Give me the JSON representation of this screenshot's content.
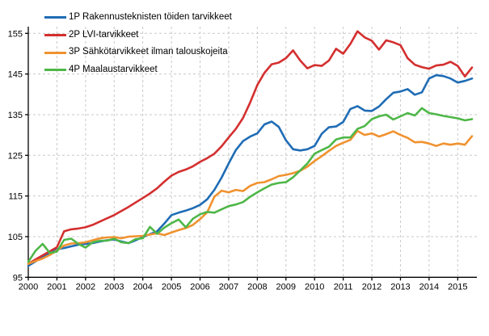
{
  "chart_data": {
    "type": "line",
    "title": "",
    "xlabel": "",
    "ylabel": "",
    "grid": true,
    "legend_position": "top-left",
    "axis_color": "#000000",
    "grid_color": "#c9c9c9",
    "tick_font_px": 11,
    "x_start": 2000,
    "x_step": 0.25,
    "x_ticks": [
      2000,
      2001,
      2002,
      2003,
      2004,
      2005,
      2006,
      2007,
      2008,
      2009,
      2010,
      2011,
      2012,
      2013,
      2014,
      2015
    ],
    "y_ticks": [
      95,
      105,
      115,
      125,
      135,
      145,
      155
    ],
    "ylim": [
      95,
      157.5
    ],
    "xlim": [
      2000,
      2015.67
    ],
    "series": [
      {
        "name": "1P Rakennusteknisten töiden tarvikkeet",
        "color": "#1f6cb5",
        "values": [
          97.8,
          98.9,
          100.1,
          101.0,
          101.9,
          102.2,
          102.6,
          103.0,
          103.2,
          103.4,
          103.8,
          104.1,
          104.3,
          103.8,
          103.4,
          104.1,
          104.9,
          105.6,
          106.3,
          108.2,
          110.3,
          110.9,
          111.4,
          112.0,
          112.8,
          114.2,
          116.5,
          119.5,
          123.0,
          126.3,
          128.5,
          129.6,
          130.4,
          132.6,
          133.3,
          132.0,
          128.7,
          126.5,
          126.2,
          126.5,
          127.3,
          130.3,
          131.9,
          132.1,
          133.2,
          136.4,
          137.1,
          136.0,
          135.9,
          137.0,
          138.8,
          140.4,
          140.7,
          141.3,
          139.9,
          140.5,
          143.9,
          144.7,
          144.5,
          143.9,
          142.9,
          143.3,
          143.9
        ]
      },
      {
        "name": "2P LVI-tarvikkeet",
        "color": "#d42f2f",
        "values": [
          98.3,
          99.4,
          100.4,
          101.4,
          102.4,
          106.3,
          106.8,
          107.0,
          107.3,
          107.9,
          108.7,
          109.5,
          110.3,
          111.3,
          112.3,
          113.4,
          114.5,
          115.6,
          116.9,
          118.5,
          120.0,
          120.9,
          121.5,
          122.3,
          123.4,
          124.3,
          125.4,
          127.2,
          129.4,
          131.5,
          134.2,
          138.0,
          142.3,
          145.3,
          147.4,
          147.8,
          148.9,
          150.8,
          148.3,
          146.4,
          147.2,
          147.0,
          148.3,
          151.2,
          150.0,
          152.4,
          155.5,
          154.0,
          153.2,
          151.0,
          153.3,
          152.8,
          152.1,
          148.9,
          147.3,
          146.7,
          146.3,
          147.1,
          147.3,
          148.0,
          147.0,
          144.4,
          146.6
        ]
      },
      {
        "name": "3P Sähkötarvikkeet ilman talouskojeita",
        "color": "#f0922f",
        "values": [
          98.3,
          99.0,
          99.6,
          100.5,
          101.6,
          102.8,
          103.3,
          103.4,
          103.6,
          104.1,
          104.6,
          104.8,
          104.9,
          104.6,
          105.0,
          105.1,
          105.2,
          105.5,
          105.8,
          105.4,
          106.0,
          106.6,
          107.1,
          107.9,
          109.3,
          111.0,
          114.8,
          116.3,
          115.9,
          116.5,
          116.2,
          117.5,
          118.2,
          118.4,
          119.1,
          119.9,
          120.2,
          120.6,
          121.2,
          122.2,
          123.6,
          124.8,
          126.1,
          127.3,
          128.1,
          128.8,
          131.0,
          130.0,
          130.4,
          129.6,
          130.2,
          130.9,
          130.0,
          129.3,
          128.2,
          128.3,
          127.9,
          127.3,
          127.9,
          127.6,
          127.9,
          127.6,
          129.7
        ]
      },
      {
        "name": "4P Maalaustarvikkeet",
        "color": "#4eb748",
        "values": [
          98.8,
          101.5,
          103.2,
          101.0,
          101.3,
          104.2,
          104.5,
          103.2,
          102.3,
          103.6,
          104.0,
          104.0,
          104.5,
          103.6,
          103.4,
          104.4,
          104.6,
          107.4,
          105.7,
          107.2,
          108.3,
          109.2,
          107.3,
          109.4,
          110.5,
          111.1,
          110.9,
          111.7,
          112.5,
          112.9,
          113.5,
          114.8,
          115.9,
          116.9,
          117.8,
          118.2,
          118.4,
          119.6,
          121.3,
          123.0,
          125.4,
          126.3,
          127.1,
          128.9,
          129.4,
          129.4,
          131.5,
          132.2,
          133.9,
          134.6,
          135.0,
          133.8,
          134.6,
          135.4,
          134.8,
          136.6,
          135.4,
          135.1,
          134.7,
          134.4,
          134.1,
          133.6,
          133.9
        ]
      }
    ]
  }
}
